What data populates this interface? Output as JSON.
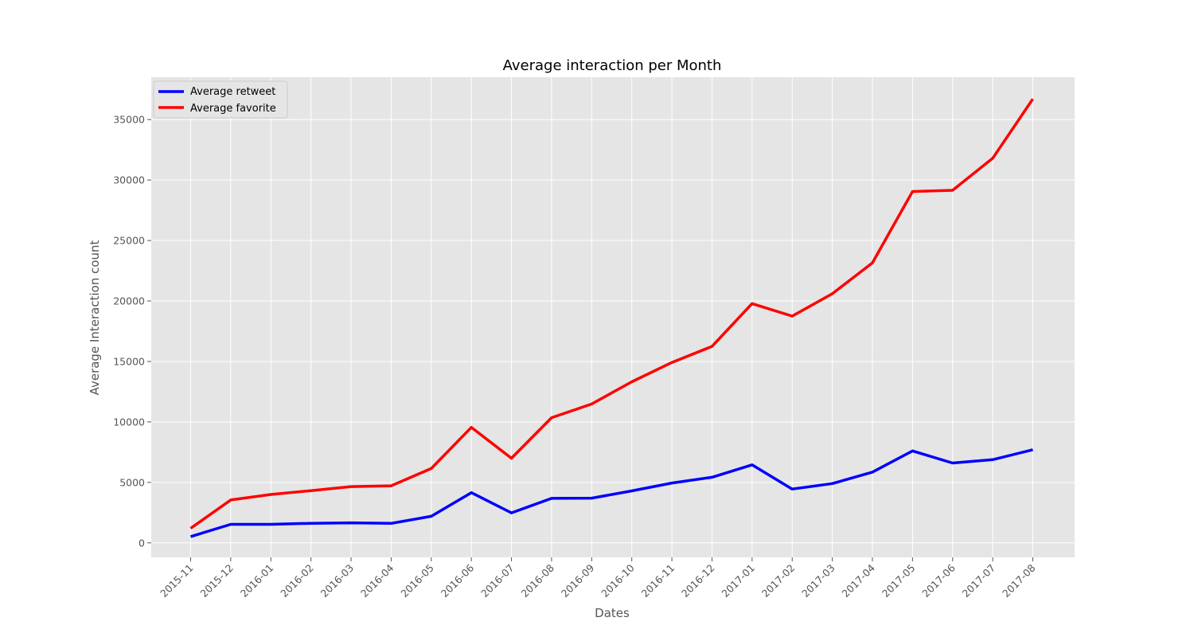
{
  "chart_data": {
    "type": "line",
    "title": "Average interaction per Month",
    "xlabel": "Dates",
    "ylabel": "Average Interaction count",
    "categories": [
      "2015-11",
      "2015-12",
      "2016-01",
      "2016-02",
      "2016-03",
      "2016-04",
      "2016-05",
      "2016-06",
      "2016-07",
      "2016-08",
      "2016-09",
      "2016-10",
      "2016-11",
      "2016-12",
      "2017-01",
      "2017-02",
      "2017-03",
      "2017-04",
      "2017-05",
      "2017-06",
      "2017-07",
      "2017-08"
    ],
    "y_ticks": [
      0,
      5000,
      10000,
      15000,
      20000,
      25000,
      30000,
      35000
    ],
    "ylim": [
      -1200,
      38500
    ],
    "grid": true,
    "legend_position": "top-left",
    "series": [
      {
        "name": "Average retweet",
        "color": "#0000ff",
        "values": [
          520,
          1530,
          1530,
          1620,
          1660,
          1610,
          2200,
          4150,
          2480,
          3680,
          3700,
          4300,
          4950,
          5420,
          6450,
          4450,
          4900,
          5850,
          7600,
          6600,
          6880,
          7700
        ]
      },
      {
        "name": "Average favorite",
        "color": "#ff0000",
        "values": [
          1200,
          3550,
          4000,
          4320,
          4650,
          4720,
          6150,
          9550,
          7000,
          10350,
          11480,
          13320,
          14920,
          16250,
          19780,
          18750,
          20600,
          23150,
          29050,
          29150,
          31800,
          36700
        ]
      }
    ]
  }
}
